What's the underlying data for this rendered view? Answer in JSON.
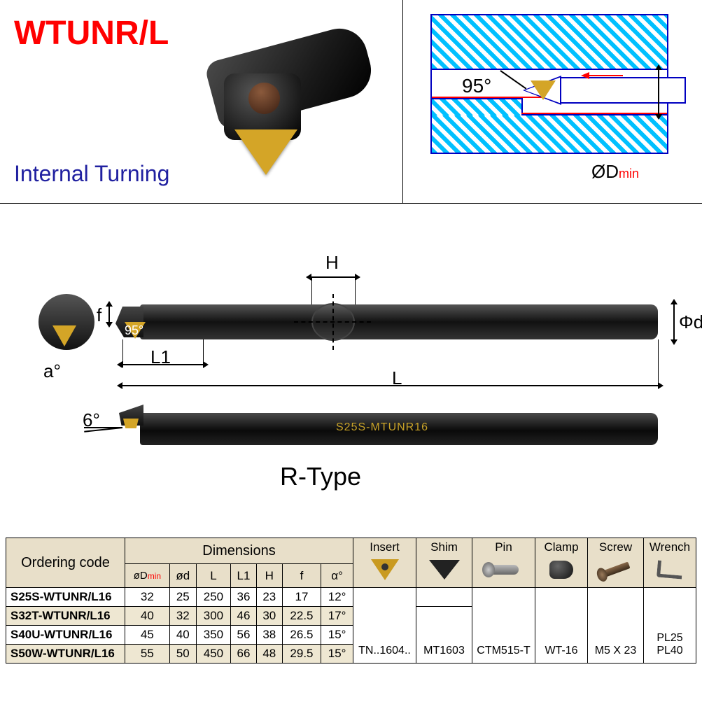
{
  "title": "WTUNR/L",
  "subtitle": "Internal Turning",
  "schematic": {
    "angle_label": "95°",
    "d_label_prefix": "ØD",
    "d_label_suffix": "min"
  },
  "drawing": {
    "H": "H",
    "L": "L",
    "L1": "L1",
    "f": "f",
    "a": "a°",
    "phi_d": "Φd",
    "angle95": "95°",
    "angle6": "6°",
    "bar_marking": "S25S-MTUNR16",
    "type_label": "R-Type"
  },
  "table": {
    "ordering_header": "Ordering code",
    "dim_header": "Dimensions",
    "dim_cols": [
      "øDmin",
      "ød",
      "L",
      "L1",
      "H",
      "f",
      "α°"
    ],
    "comp_headers": [
      "Insert",
      "Shim",
      "Pin",
      "Clamp",
      "Screw",
      "Wrench"
    ],
    "rows": [
      {
        "code": "S25S-WTUNR/L16",
        "dims": [
          "32",
          "25",
          "250",
          "36",
          "23",
          "17",
          "12°"
        ]
      },
      {
        "code": "S32T-WTUNR/L16",
        "dims": [
          "40",
          "32",
          "300",
          "46",
          "30",
          "22.5",
          "17°"
        ]
      },
      {
        "code": "S40U-WTUNR/L16",
        "dims": [
          "45",
          "40",
          "350",
          "56",
          "38",
          "26.5",
          "15°"
        ]
      },
      {
        "code": "S50W-WTUNR/L16",
        "dims": [
          "55",
          "50",
          "450",
          "66",
          "48",
          "29.5",
          "15°"
        ]
      }
    ],
    "insert_val": "TN..1604..",
    "shim_top": "",
    "shim_bottom": "MT1603",
    "pin_val": "CTM515-T",
    "clamp_val": "WT-16",
    "screw_val": "M5 X 23",
    "wrench_val": "PL25\nPL40"
  },
  "colors": {
    "title": "#ff0000",
    "subtitle": "#2020a0",
    "schematic_stroke": "#0000c0",
    "hatch": "#00c8ff",
    "insert_gold": "#d4a527",
    "table_header_bg": "#e8dfc9",
    "table_alt_bg": "#eee7d2"
  }
}
